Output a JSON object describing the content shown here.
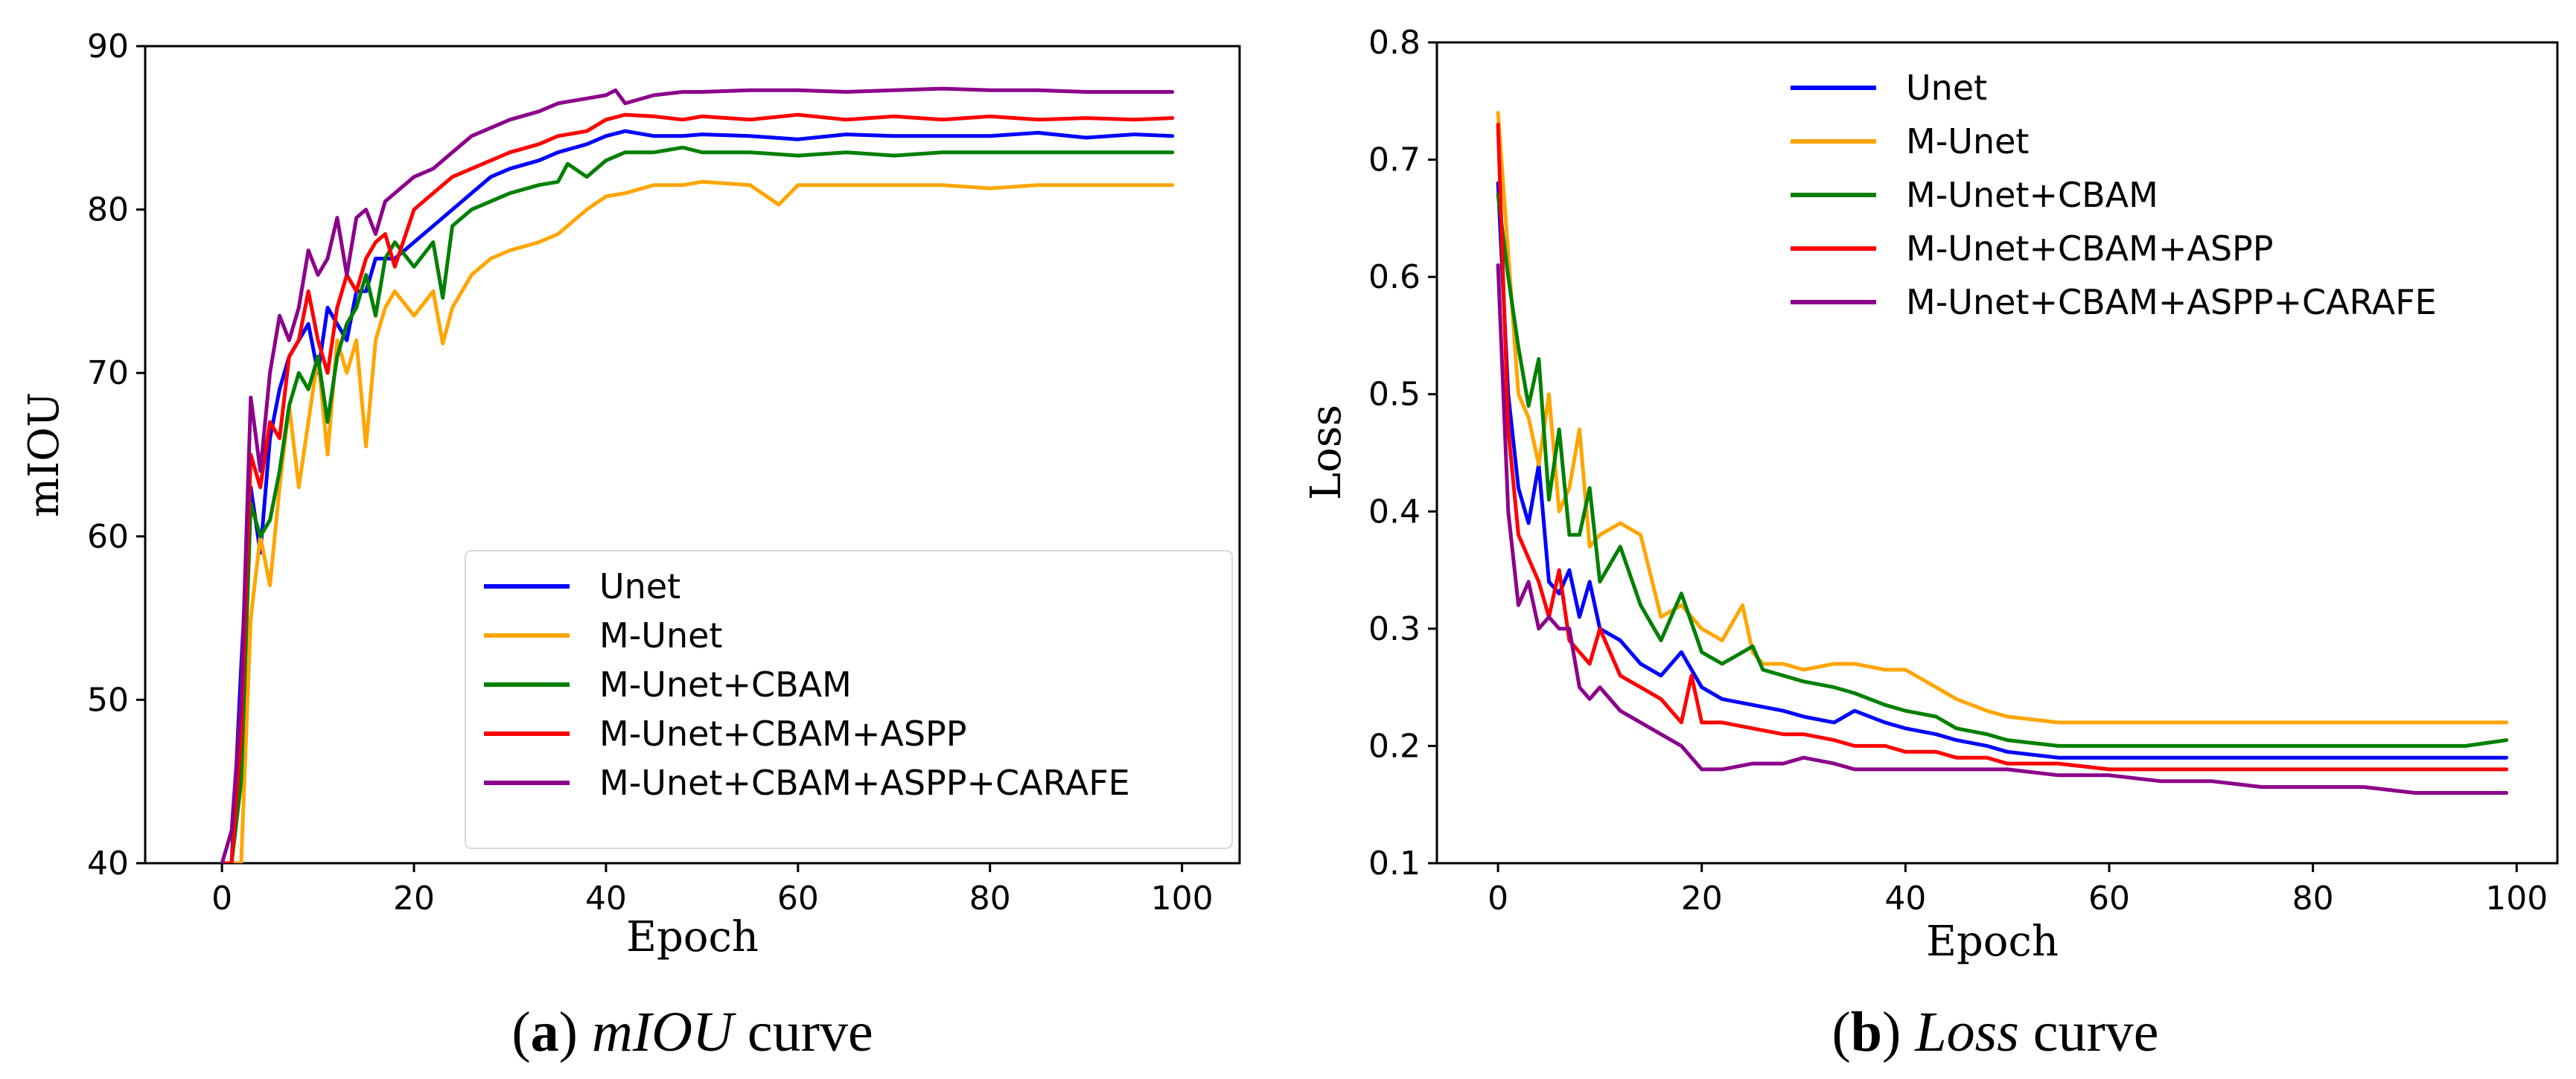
{
  "chart_data": [
    {
      "type": "line",
      "caption": {
        "label": "a",
        "italic": "mIOU",
        "rest": " curve"
      },
      "xlabel": "Epoch",
      "ylabel": "mIOU",
      "xlim": [
        -8,
        106
      ],
      "ylim": [
        40,
        90
      ],
      "xticks": [
        0,
        20,
        40,
        60,
        80,
        100
      ],
      "yticks": [
        40,
        50,
        60,
        70,
        80,
        90
      ],
      "legend_position": "lower-right",
      "series": [
        {
          "name": "Unet",
          "color": "#0000ff",
          "x": [
            0,
            1,
            2,
            3,
            4,
            5,
            6,
            7,
            8,
            9,
            10,
            11,
            12,
            13,
            14,
            15,
            16,
            18,
            20,
            22,
            25,
            28,
            30,
            33,
            35,
            38,
            40,
            42,
            45,
            48,
            50,
            55,
            60,
            65,
            70,
            75,
            80,
            85,
            90,
            95,
            99
          ],
          "y": [
            40,
            40,
            52,
            63,
            59,
            66,
            69,
            71,
            72,
            73,
            70,
            74,
            73,
            72,
            75,
            75,
            77,
            77,
            78,
            79,
            80.5,
            82,
            82.5,
            83,
            83.5,
            84,
            84.5,
            84.8,
            84.5,
            84.5,
            84.6,
            84.5,
            84.3,
            84.6,
            84.5,
            84.5,
            84.5,
            84.7,
            84.4,
            84.6,
            84.5
          ]
        },
        {
          "name": "M-Unet",
          "color": "#ffa500",
          "x": [
            0,
            1,
            2,
            3,
            4,
            5,
            6,
            7,
            8,
            9,
            10,
            11,
            12,
            13,
            14,
            15,
            16,
            17,
            18,
            20,
            22,
            23,
            24,
            26,
            28,
            30,
            33,
            35,
            38,
            40,
            42,
            45,
            48,
            50,
            55,
            58,
            60,
            65,
            70,
            75,
            80,
            85,
            90,
            95,
            99
          ],
          "y": [
            40,
            40,
            40,
            55,
            60,
            57,
            63,
            68,
            63,
            67,
            71,
            65,
            72,
            70,
            72,
            65.5,
            72,
            74,
            75,
            73.5,
            75,
            71.8,
            74,
            76,
            77,
            77.5,
            78,
            78.5,
            80,
            80.8,
            81,
            81.5,
            81.5,
            81.7,
            81.5,
            80.3,
            81.5,
            81.5,
            81.5,
            81.5,
            81.3,
            81.5,
            81.5,
            81.5,
            81.5
          ]
        },
        {
          "name": "M-Unet+CBAM",
          "color": "#008000",
          "x": [
            0,
            1,
            2,
            3,
            4,
            5,
            6,
            7,
            8,
            9,
            10,
            11,
            12,
            13,
            14,
            15,
            16,
            17,
            18,
            20,
            22,
            23,
            24,
            26,
            28,
            30,
            33,
            35,
            36,
            38,
            40,
            42,
            45,
            48,
            50,
            55,
            60,
            65,
            70,
            75,
            80,
            85,
            90,
            95,
            99
          ],
          "y": [
            40,
            40,
            45,
            62,
            60,
            61,
            64,
            68,
            70,
            69,
            71,
            67,
            71,
            73,
            74,
            76,
            73.5,
            77,
            78,
            76.5,
            78,
            74.6,
            79,
            80,
            80.5,
            81,
            81.5,
            81.7,
            82.8,
            82,
            83,
            83.5,
            83.5,
            83.8,
            83.5,
            83.5,
            83.3,
            83.5,
            83.3,
            83.5,
            83.5,
            83.5,
            83.5,
            83.5,
            83.5
          ]
        },
        {
          "name": "M-Unet+CBAM+ASPP",
          "color": "#ff0000",
          "x": [
            0,
            1,
            2,
            3,
            4,
            5,
            6,
            7,
            8,
            9,
            10,
            11,
            12,
            13,
            14,
            15,
            16,
            17,
            18,
            20,
            22,
            24,
            26,
            28,
            30,
            33,
            35,
            38,
            40,
            42,
            45,
            48,
            50,
            55,
            60,
            65,
            70,
            75,
            80,
            85,
            90,
            95,
            99
          ],
          "y": [
            40,
            40,
            48,
            65,
            63,
            67,
            66,
            71,
            72,
            75,
            72,
            70,
            74,
            76,
            75,
            77,
            78,
            78.5,
            76.5,
            80,
            81,
            82,
            82.5,
            83,
            83.5,
            84,
            84.5,
            84.8,
            85.5,
            85.8,
            85.7,
            85.5,
            85.7,
            85.5,
            85.8,
            85.5,
            85.7,
            85.5,
            85.7,
            85.5,
            85.6,
            85.5,
            85.6
          ]
        },
        {
          "name": "M-Unet+CBAM+ASPP+CARAFE",
          "color": "#8b008b",
          "x": [
            0,
            1,
            2,
            3,
            4,
            5,
            6,
            7,
            8,
            9,
            10,
            11,
            12,
            13,
            14,
            15,
            16,
            17,
            18,
            20,
            22,
            24,
            26,
            28,
            30,
            33,
            35,
            38,
            40,
            41,
            42,
            45,
            48,
            50,
            55,
            60,
            65,
            70,
            75,
            80,
            85,
            90,
            95,
            99
          ],
          "y": [
            40,
            42,
            50,
            68.5,
            64,
            70,
            73.5,
            72,
            74,
            77.5,
            76,
            77,
            79.5,
            76,
            79.5,
            80,
            78.5,
            80.5,
            81,
            82,
            82.5,
            83.5,
            84.5,
            85,
            85.5,
            86,
            86.5,
            86.8,
            87,
            87.3,
            86.5,
            87,
            87.2,
            87.2,
            87.3,
            87.3,
            87.2,
            87.3,
            87.4,
            87.3,
            87.3,
            87.2,
            87.2,
            87.2
          ]
        }
      ]
    },
    {
      "type": "line",
      "caption": {
        "label": "b",
        "italic": "Loss",
        "rest": " curve"
      },
      "xlabel": "Epoch",
      "ylabel": "Loss",
      "xlim": [
        -6,
        104
      ],
      "ylim": [
        0.1,
        0.8
      ],
      "xticks": [
        0,
        20,
        40,
        60,
        80,
        100
      ],
      "yticks": [
        0.1,
        0.2,
        0.3,
        0.4,
        0.5,
        0.6,
        0.7,
        0.8
      ],
      "legend_position": "top-right",
      "series": [
        {
          "name": "Unet",
          "color": "#0000ff",
          "x": [
            0,
            1,
            2,
            3,
            4,
            5,
            6,
            7,
            8,
            9,
            10,
            12,
            14,
            16,
            18,
            20,
            22,
            25,
            28,
            30,
            33,
            35,
            38,
            40,
            43,
            45,
            48,
            50,
            55,
            60,
            65,
            70,
            75,
            80,
            85,
            90,
            95,
            99
          ],
          "y": [
            0.68,
            0.5,
            0.42,
            0.39,
            0.44,
            0.34,
            0.33,
            0.35,
            0.31,
            0.34,
            0.3,
            0.29,
            0.27,
            0.26,
            0.28,
            0.25,
            0.24,
            0.235,
            0.23,
            0.225,
            0.22,
            0.23,
            0.22,
            0.215,
            0.21,
            0.205,
            0.2,
            0.195,
            0.19,
            0.19,
            0.19,
            0.19,
            0.19,
            0.19,
            0.19,
            0.19,
            0.19,
            0.19
          ]
        },
        {
          "name": "M-Unet",
          "color": "#ffa500",
          "x": [
            0,
            1,
            2,
            3,
            4,
            5,
            6,
            7,
            8,
            9,
            10,
            12,
            14,
            16,
            18,
            20,
            22,
            24,
            25,
            26,
            28,
            30,
            33,
            35,
            38,
            40,
            43,
            45,
            48,
            50,
            55,
            60,
            65,
            70,
            75,
            80,
            85,
            90,
            95,
            99
          ],
          "y": [
            0.74,
            0.62,
            0.5,
            0.48,
            0.44,
            0.5,
            0.4,
            0.42,
            0.47,
            0.37,
            0.38,
            0.39,
            0.38,
            0.31,
            0.32,
            0.3,
            0.29,
            0.32,
            0.28,
            0.27,
            0.27,
            0.265,
            0.27,
            0.27,
            0.265,
            0.265,
            0.25,
            0.24,
            0.23,
            0.225,
            0.22,
            0.22,
            0.22,
            0.22,
            0.22,
            0.22,
            0.22,
            0.22,
            0.22,
            0.22
          ]
        },
        {
          "name": "M-Unet+CBAM",
          "color": "#008000",
          "x": [
            0,
            1,
            2,
            3,
            4,
            5,
            6,
            7,
            8,
            9,
            10,
            12,
            14,
            16,
            18,
            20,
            22,
            24,
            25,
            26,
            28,
            30,
            33,
            35,
            38,
            40,
            43,
            45,
            48,
            50,
            55,
            60,
            65,
            70,
            75,
            80,
            85,
            90,
            95,
            99
          ],
          "y": [
            0.67,
            0.6,
            0.54,
            0.49,
            0.53,
            0.41,
            0.47,
            0.38,
            0.38,
            0.42,
            0.34,
            0.37,
            0.32,
            0.29,
            0.33,
            0.28,
            0.27,
            0.28,
            0.285,
            0.265,
            0.26,
            0.255,
            0.25,
            0.245,
            0.235,
            0.23,
            0.225,
            0.215,
            0.21,
            0.205,
            0.2,
            0.2,
            0.2,
            0.2,
            0.2,
            0.2,
            0.2,
            0.2,
            0.2,
            0.205
          ]
        },
        {
          "name": "M-Unet+CBAM+ASPP",
          "color": "#ff0000",
          "x": [
            0,
            1,
            2,
            3,
            4,
            5,
            6,
            7,
            8,
            9,
            10,
            12,
            14,
            16,
            17,
            18,
            19,
            20,
            22,
            25,
            28,
            30,
            33,
            35,
            38,
            40,
            43,
            45,
            48,
            50,
            55,
            60,
            65,
            70,
            75,
            80,
            85,
            90,
            95,
            99
          ],
          "y": [
            0.73,
            0.47,
            0.38,
            0.36,
            0.34,
            0.31,
            0.35,
            0.29,
            0.28,
            0.27,
            0.3,
            0.26,
            0.25,
            0.24,
            0.23,
            0.22,
            0.26,
            0.22,
            0.22,
            0.215,
            0.21,
            0.21,
            0.205,
            0.2,
            0.2,
            0.195,
            0.195,
            0.19,
            0.19,
            0.185,
            0.185,
            0.18,
            0.18,
            0.18,
            0.18,
            0.18,
            0.18,
            0.18,
            0.18,
            0.18
          ]
        },
        {
          "name": "M-Unet+CBAM+ASPP+CARAFE",
          "color": "#8b008b",
          "x": [
            0,
            1,
            2,
            3,
            4,
            5,
            6,
            7,
            8,
            9,
            10,
            12,
            14,
            16,
            18,
            20,
            22,
            25,
            28,
            30,
            33,
            35,
            38,
            40,
            43,
            45,
            48,
            50,
            55,
            60,
            65,
            70,
            75,
            80,
            85,
            90,
            95,
            99
          ],
          "y": [
            0.61,
            0.4,
            0.32,
            0.34,
            0.3,
            0.31,
            0.3,
            0.3,
            0.25,
            0.24,
            0.25,
            0.23,
            0.22,
            0.21,
            0.2,
            0.18,
            0.18,
            0.185,
            0.185,
            0.19,
            0.185,
            0.18,
            0.18,
            0.18,
            0.18,
            0.18,
            0.18,
            0.18,
            0.175,
            0.175,
            0.17,
            0.17,
            0.165,
            0.165,
            0.165,
            0.16,
            0.16,
            0.16
          ]
        }
      ]
    }
  ]
}
